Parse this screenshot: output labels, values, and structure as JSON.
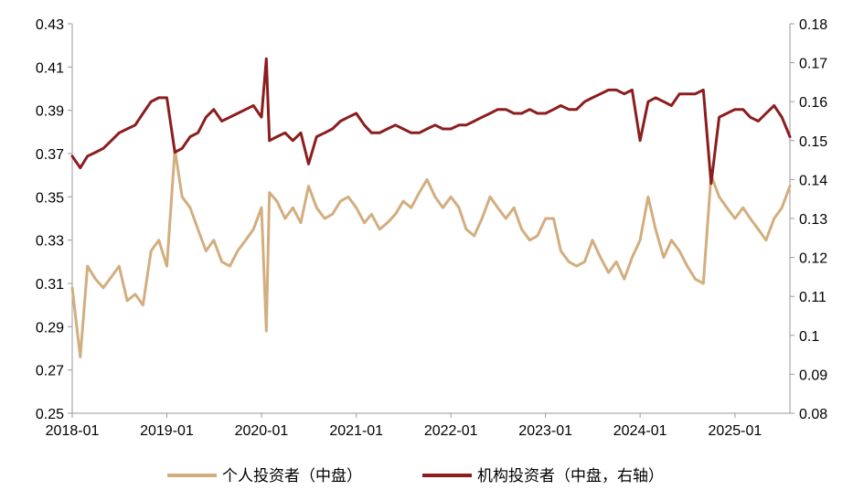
{
  "chart_data": {
    "type": "line",
    "x_ticks": [
      "2018-01",
      "2019-01",
      "2020-01",
      "2021-01",
      "2022-01",
      "2023-01",
      "2024-01",
      "2025-01"
    ],
    "x_range": [
      "2018-01",
      "2025-08"
    ],
    "y_left": {
      "min": 0.25,
      "max": 0.43,
      "ticks": [
        "0.25",
        "0.27",
        "0.29",
        "0.31",
        "0.33",
        "0.35",
        "0.37",
        "0.39",
        "0.41",
        "0.43"
      ]
    },
    "y_right": {
      "min": 0.08,
      "max": 0.18,
      "ticks": [
        "0.08",
        "0.09",
        "0.1",
        "0.11",
        "0.12",
        "0.13",
        "0.14",
        "0.15",
        "0.16",
        "0.17",
        "0.18"
      ]
    },
    "grid": false,
    "legend_position": "bottom",
    "series": [
      {
        "name": "个人投资者（中盘）",
        "axis": "left",
        "color": "#D2AE7F",
        "x": [
          "2018-01-01",
          "2018-02-01",
          "2018-03-01",
          "2018-04-01",
          "2018-05-01",
          "2018-06-01",
          "2018-07-01",
          "2018-08-01",
          "2018-09-01",
          "2018-10-01",
          "2018-11-01",
          "2018-12-01",
          "2019-01-01",
          "2019-02-01",
          "2019-03-01",
          "2019-04-01",
          "2019-05-01",
          "2019-06-01",
          "2019-07-01",
          "2019-08-01",
          "2019-09-01",
          "2019-10-01",
          "2019-11-01",
          "2019-12-01",
          "2020-01-01",
          "2020-01-20",
          "2020-02-01",
          "2020-03-01",
          "2020-04-01",
          "2020-05-01",
          "2020-06-01",
          "2020-07-01",
          "2020-08-01",
          "2020-09-01",
          "2020-10-01",
          "2020-11-01",
          "2020-12-01",
          "2021-01-01",
          "2021-02-01",
          "2021-03-01",
          "2021-04-01",
          "2021-05-01",
          "2021-06-01",
          "2021-07-01",
          "2021-08-01",
          "2021-09-01",
          "2021-10-01",
          "2021-11-01",
          "2021-12-01",
          "2022-01-01",
          "2022-02-01",
          "2022-03-01",
          "2022-04-01",
          "2022-05-01",
          "2022-06-01",
          "2022-07-01",
          "2022-08-01",
          "2022-09-01",
          "2022-10-01",
          "2022-11-01",
          "2022-12-01",
          "2023-01-01",
          "2023-02-01",
          "2023-03-01",
          "2023-04-01",
          "2023-05-01",
          "2023-06-01",
          "2023-07-01",
          "2023-08-01",
          "2023-09-01",
          "2023-10-01",
          "2023-11-01",
          "2023-12-01",
          "2024-01-01",
          "2024-02-01",
          "2024-03-01",
          "2024-04-01",
          "2024-05-01",
          "2024-06-01",
          "2024-07-01",
          "2024-08-01",
          "2024-09-01",
          "2024-10-01",
          "2024-11-01",
          "2024-12-01",
          "2025-01-01",
          "2025-02-01",
          "2025-03-01",
          "2025-04-01",
          "2025-05-01",
          "2025-06-01",
          "2025-07-01",
          "2025-08-01"
        ],
        "values": [
          0.308,
          0.276,
          0.318,
          0.312,
          0.308,
          0.313,
          0.318,
          0.302,
          0.305,
          0.3,
          0.325,
          0.33,
          0.318,
          0.372,
          0.35,
          0.345,
          0.335,
          0.325,
          0.33,
          0.32,
          0.318,
          0.325,
          0.33,
          0.335,
          0.345,
          0.288,
          0.352,
          0.348,
          0.34,
          0.345,
          0.338,
          0.355,
          0.345,
          0.34,
          0.342,
          0.348,
          0.35,
          0.345,
          0.338,
          0.342,
          0.335,
          0.338,
          0.342,
          0.348,
          0.345,
          0.352,
          0.358,
          0.35,
          0.345,
          0.35,
          0.345,
          0.335,
          0.332,
          0.34,
          0.35,
          0.345,
          0.34,
          0.345,
          0.335,
          0.33,
          0.332,
          0.34,
          0.34,
          0.325,
          0.32,
          0.318,
          0.32,
          0.33,
          0.322,
          0.315,
          0.32,
          0.312,
          0.322,
          0.33,
          0.35,
          0.335,
          0.322,
          0.33,
          0.325,
          0.318,
          0.312,
          0.31,
          0.36,
          0.35,
          0.345,
          0.34,
          0.345,
          0.34,
          0.335,
          0.33,
          0.34,
          0.345,
          0.355
        ]
      },
      {
        "name": "机构投资者（中盘，右轴）",
        "axis": "right",
        "color": "#8B1D1F",
        "x": [
          "2018-01-01",
          "2018-02-01",
          "2018-03-01",
          "2018-04-01",
          "2018-05-01",
          "2018-06-01",
          "2018-07-01",
          "2018-08-01",
          "2018-09-01",
          "2018-10-01",
          "2018-11-01",
          "2018-12-01",
          "2019-01-01",
          "2019-02-01",
          "2019-03-01",
          "2019-04-01",
          "2019-05-01",
          "2019-06-01",
          "2019-07-01",
          "2019-08-01",
          "2019-09-01",
          "2019-10-01",
          "2019-11-01",
          "2019-12-01",
          "2020-01-01",
          "2020-01-20",
          "2020-02-01",
          "2020-03-01",
          "2020-04-01",
          "2020-05-01",
          "2020-06-01",
          "2020-07-01",
          "2020-08-01",
          "2020-09-01",
          "2020-10-01",
          "2020-11-01",
          "2020-12-01",
          "2021-01-01",
          "2021-02-01",
          "2021-03-01",
          "2021-04-01",
          "2021-05-01",
          "2021-06-01",
          "2021-07-01",
          "2021-08-01",
          "2021-09-01",
          "2021-10-01",
          "2021-11-01",
          "2021-12-01",
          "2022-01-01",
          "2022-02-01",
          "2022-03-01",
          "2022-04-01",
          "2022-05-01",
          "2022-06-01",
          "2022-07-01",
          "2022-08-01",
          "2022-09-01",
          "2022-10-01",
          "2022-11-01",
          "2022-12-01",
          "2023-01-01",
          "2023-02-01",
          "2023-03-01",
          "2023-04-01",
          "2023-05-01",
          "2023-06-01",
          "2023-07-01",
          "2023-08-01",
          "2023-09-01",
          "2023-10-01",
          "2023-11-01",
          "2023-12-01",
          "2024-01-01",
          "2024-02-01",
          "2024-03-01",
          "2024-04-01",
          "2024-05-01",
          "2024-06-01",
          "2024-07-01",
          "2024-08-01",
          "2024-09-01",
          "2024-10-01",
          "2024-11-01",
          "2024-12-01",
          "2025-01-01",
          "2025-02-01",
          "2025-03-01",
          "2025-04-01",
          "2025-05-01",
          "2025-06-01",
          "2025-07-01",
          "2025-08-01"
        ],
        "values": [
          0.146,
          0.143,
          0.146,
          0.147,
          0.148,
          0.15,
          0.152,
          0.153,
          0.154,
          0.157,
          0.16,
          0.161,
          0.161,
          0.147,
          0.148,
          0.151,
          0.152,
          0.156,
          0.158,
          0.155,
          0.156,
          0.157,
          0.158,
          0.159,
          0.156,
          0.171,
          0.15,
          0.151,
          0.152,
          0.15,
          0.152,
          0.144,
          0.151,
          0.152,
          0.153,
          0.155,
          0.156,
          0.157,
          0.154,
          0.152,
          0.152,
          0.153,
          0.154,
          0.153,
          0.152,
          0.152,
          0.153,
          0.154,
          0.153,
          0.153,
          0.154,
          0.154,
          0.155,
          0.156,
          0.157,
          0.158,
          0.158,
          0.157,
          0.157,
          0.158,
          0.157,
          0.157,
          0.158,
          0.159,
          0.158,
          0.158,
          0.16,
          0.161,
          0.162,
          0.163,
          0.163,
          0.162,
          0.163,
          0.15,
          0.16,
          0.161,
          0.16,
          0.159,
          0.162,
          0.162,
          0.162,
          0.163,
          0.139,
          0.156,
          0.157,
          0.158,
          0.158,
          0.156,
          0.155,
          0.157,
          0.159,
          0.156,
          0.151
        ]
      }
    ]
  }
}
